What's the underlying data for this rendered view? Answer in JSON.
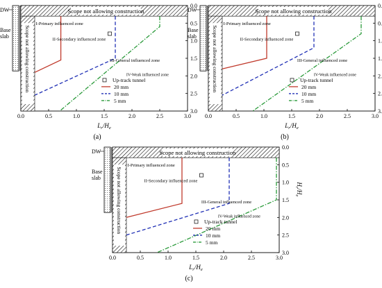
{
  "figure": {
    "panels": [
      {
        "panel_label": "(a)",
        "dw_label": "DW",
        "base_slab_label_line1": "Base",
        "base_slab_label_line2": "slab",
        "no_construction_top_label": "Scope not allowing construction",
        "no_construction_side_label": "Scope not allowing construction",
        "zone_labels": {
          "primary": "I-Primary influenced zone",
          "secondary": "II-Secondary influenced zone",
          "general": "III-General influenced zone",
          "weak": "IV-Weak influenced zone"
        },
        "legend": {
          "marker_label": "Up-track tunnel",
          "line_labels": [
            "20 mm",
            "10 mm",
            "5 mm"
          ]
        },
        "chart_data": {
          "type": "line",
          "xlabel": "Lr/He",
          "ylabel": "Hr/He",
          "xlim": [
            0.0,
            3.0
          ],
          "ylim": [
            3.0,
            0.0
          ],
          "y_axis_position": "right",
          "x_ticks": [
            "0.0",
            "0.5",
            "1.0",
            "1.5",
            "2.0",
            "2.5",
            "3.0"
          ],
          "y_ticks": [
            "0.0",
            "0.5",
            "1.0",
            "1.5",
            "2.0",
            "2.5",
            "3.0"
          ],
          "tunnel_marker": {
            "x": 1.6,
            "y": 0.8
          },
          "series": [
            {
              "name": "20 mm",
              "color": "#c0392b",
              "dash": "solid",
              "x": [
                0.72,
                0.72,
                0.25
              ],
              "y": [
                0.3,
                1.55,
                1.9
              ]
            },
            {
              "name": "10 mm",
              "color": "#1f2fb5",
              "dash": "dashed",
              "x": [
                1.7,
                1.7,
                0.25
              ],
              "y": [
                0.3,
                1.5,
                2.55
              ]
            },
            {
              "name": "5 mm",
              "color": "#2a9a3a",
              "dash": "dashdot",
              "x": [
                2.5,
                2.5,
                0.7
              ],
              "y": [
                0.3,
                0.6,
                3.0
              ]
            }
          ]
        }
      },
      {
        "panel_label": "(b)",
        "dw_label": "DW",
        "base_slab_label_line1": "Base",
        "base_slab_label_line2": "slab",
        "no_construction_top_label": "Scope not allowing construction",
        "no_construction_side_label": "Scope not allowing construction",
        "zone_labels": {
          "primary": "I-Primary influenced zone",
          "secondary": "II-Secondary influenced zone",
          "general": "III-General influenced zone",
          "weak": "IV-Weak influenced zone"
        },
        "legend": {
          "marker_label": "Up-track tunnel",
          "line_labels": [
            "20 mm",
            "10 mm",
            "5 mm"
          ]
        },
        "chart_data": {
          "type": "line",
          "xlabel": "Lr/He",
          "ylabel": "Hr/He",
          "xlim": [
            0.0,
            3.0
          ],
          "ylim": [
            3.0,
            0.0
          ],
          "y_axis_position": "right",
          "x_ticks": [
            "0.0",
            "0.5",
            "1.0",
            "1.5",
            "2.0",
            "2.5",
            "3.0"
          ],
          "y_ticks": [
            "0.0",
            "0.5",
            "1.0",
            "1.5",
            "2.0",
            "2.5",
            "3.0"
          ],
          "tunnel_marker": {
            "x": 1.6,
            "y": 0.8
          },
          "series": [
            {
              "name": "20 mm",
              "color": "#c0392b",
              "dash": "solid",
              "x": [
                1.05,
                1.05,
                0.25
              ],
              "y": [
                0.3,
                1.5,
                1.8
              ]
            },
            {
              "name": "10 mm",
              "color": "#1f2fb5",
              "dash": "dashed",
              "x": [
                1.9,
                1.9,
                0.25
              ],
              "y": [
                0.3,
                1.2,
                2.55
              ]
            },
            {
              "name": "5 mm",
              "color": "#2a9a3a",
              "dash": "dashdot",
              "x": [
                2.75,
                2.75,
                0.8
              ],
              "y": [
                0.3,
                0.8,
                3.0
              ]
            }
          ]
        }
      },
      {
        "panel_label": "(c)",
        "dw_label": "DW",
        "base_slab_label_line1": "Base",
        "base_slab_label_line2": "slab",
        "no_construction_top_label": "Scope not allowing construction",
        "no_construction_side_label": "Scope not allowing construction",
        "zone_labels": {
          "primary": "I-Primary influenced zone",
          "secondary": "II-Secondary influenced zone",
          "general": "III-General influenced zone",
          "weak": "IV-Weak influenced zone"
        },
        "legend": {
          "marker_label": "Up-track tunnel",
          "line_labels": [
            "20 mm",
            "10 mm",
            "5 mm"
          ]
        },
        "chart_data": {
          "type": "line",
          "xlabel": "Lr/He",
          "ylabel": "Hr/He",
          "xlim": [
            0.0,
            3.0
          ],
          "ylim": [
            3.0,
            0.0
          ],
          "y_axis_position": "right",
          "x_ticks": [
            "0.0",
            "0.5",
            "1.0",
            "1.5",
            "2.0",
            "2.5",
            "3.0"
          ],
          "y_ticks": [
            "0.0",
            "0.5",
            "1.0",
            "1.5",
            "2.0",
            "2.5",
            "3.0"
          ],
          "tunnel_marker": {
            "x": 1.6,
            "y": 0.8
          },
          "series": [
            {
              "name": "20 mm",
              "color": "#c0392b",
              "dash": "solid",
              "x": [
                1.25,
                1.25,
                0.25
              ],
              "y": [
                0.3,
                1.6,
                2.0
              ]
            },
            {
              "name": "10 mm",
              "color": "#1f2fb5",
              "dash": "dashed",
              "x": [
                2.1,
                2.1,
                0.25
              ],
              "y": [
                0.3,
                1.6,
                2.5
              ]
            },
            {
              "name": "5 mm",
              "color": "#2a9a3a",
              "dash": "dashdot",
              "x": [
                2.95,
                2.95,
                0.8
              ],
              "y": [
                0.3,
                1.5,
                3.0
              ]
            }
          ]
        }
      }
    ]
  }
}
